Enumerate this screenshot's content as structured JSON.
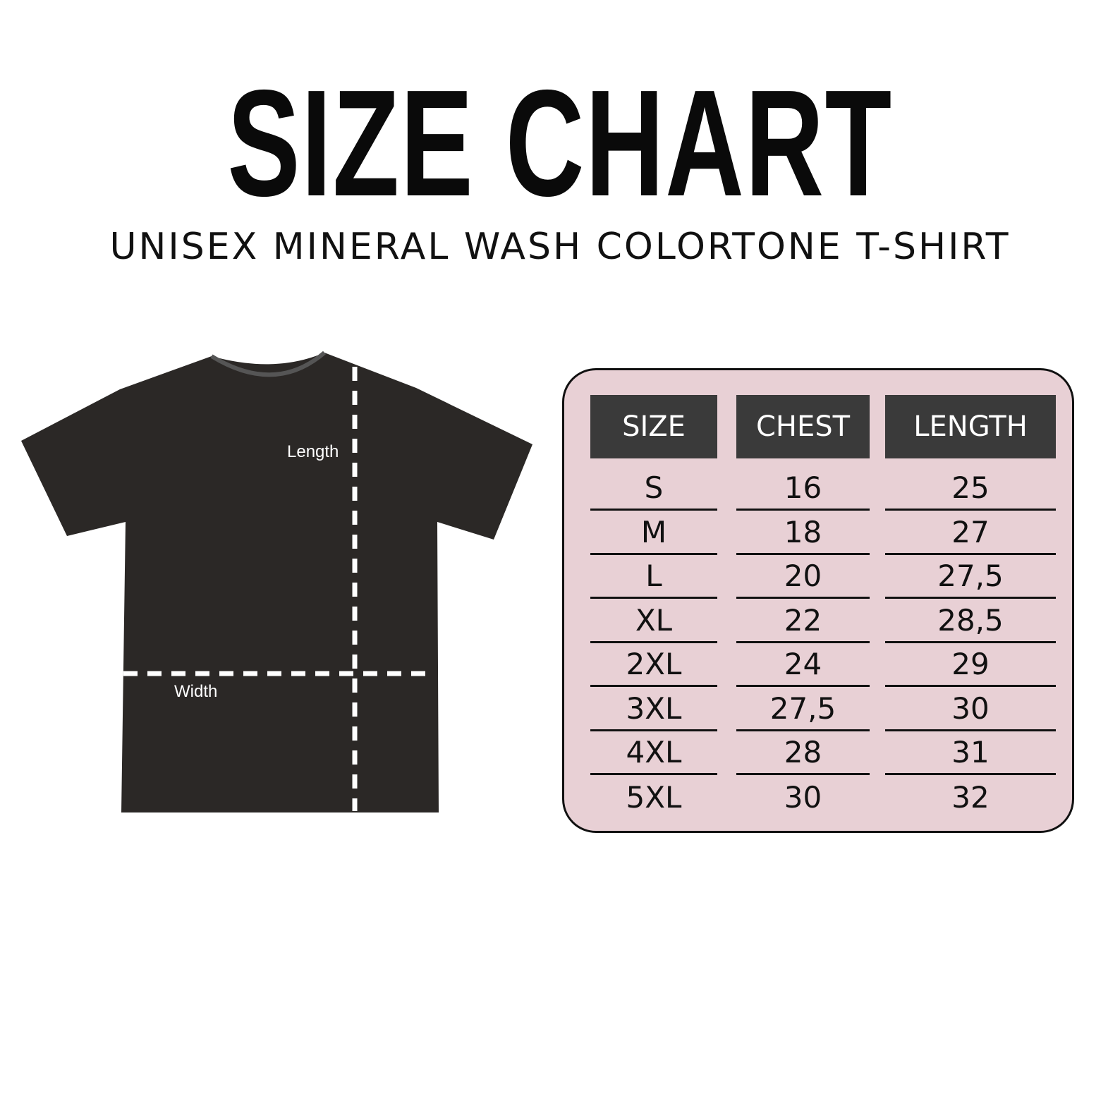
{
  "title": "SIZE CHART",
  "subtitle": "UNISEX MINERAL WASH COLORTONE T-SHIRT",
  "diagram": {
    "length_label": "Length",
    "width_label": "Width",
    "shirt_color": "#2b2826"
  },
  "table": {
    "background": "#e8d0d5",
    "header_color": "#3a3a3a",
    "headers": [
      "SIZE",
      "CHEST",
      "LENGTH"
    ],
    "rows": [
      [
        "S",
        "16",
        "25"
      ],
      [
        "M",
        "18",
        "27"
      ],
      [
        "L",
        "20",
        "27,5"
      ],
      [
        "XL",
        "22",
        "28,5"
      ],
      [
        "2XL",
        "24",
        "29"
      ],
      [
        "3XL",
        "27,5",
        "30"
      ],
      [
        "4XL",
        "28",
        "31"
      ],
      [
        "5XL",
        "30",
        "32"
      ]
    ]
  }
}
